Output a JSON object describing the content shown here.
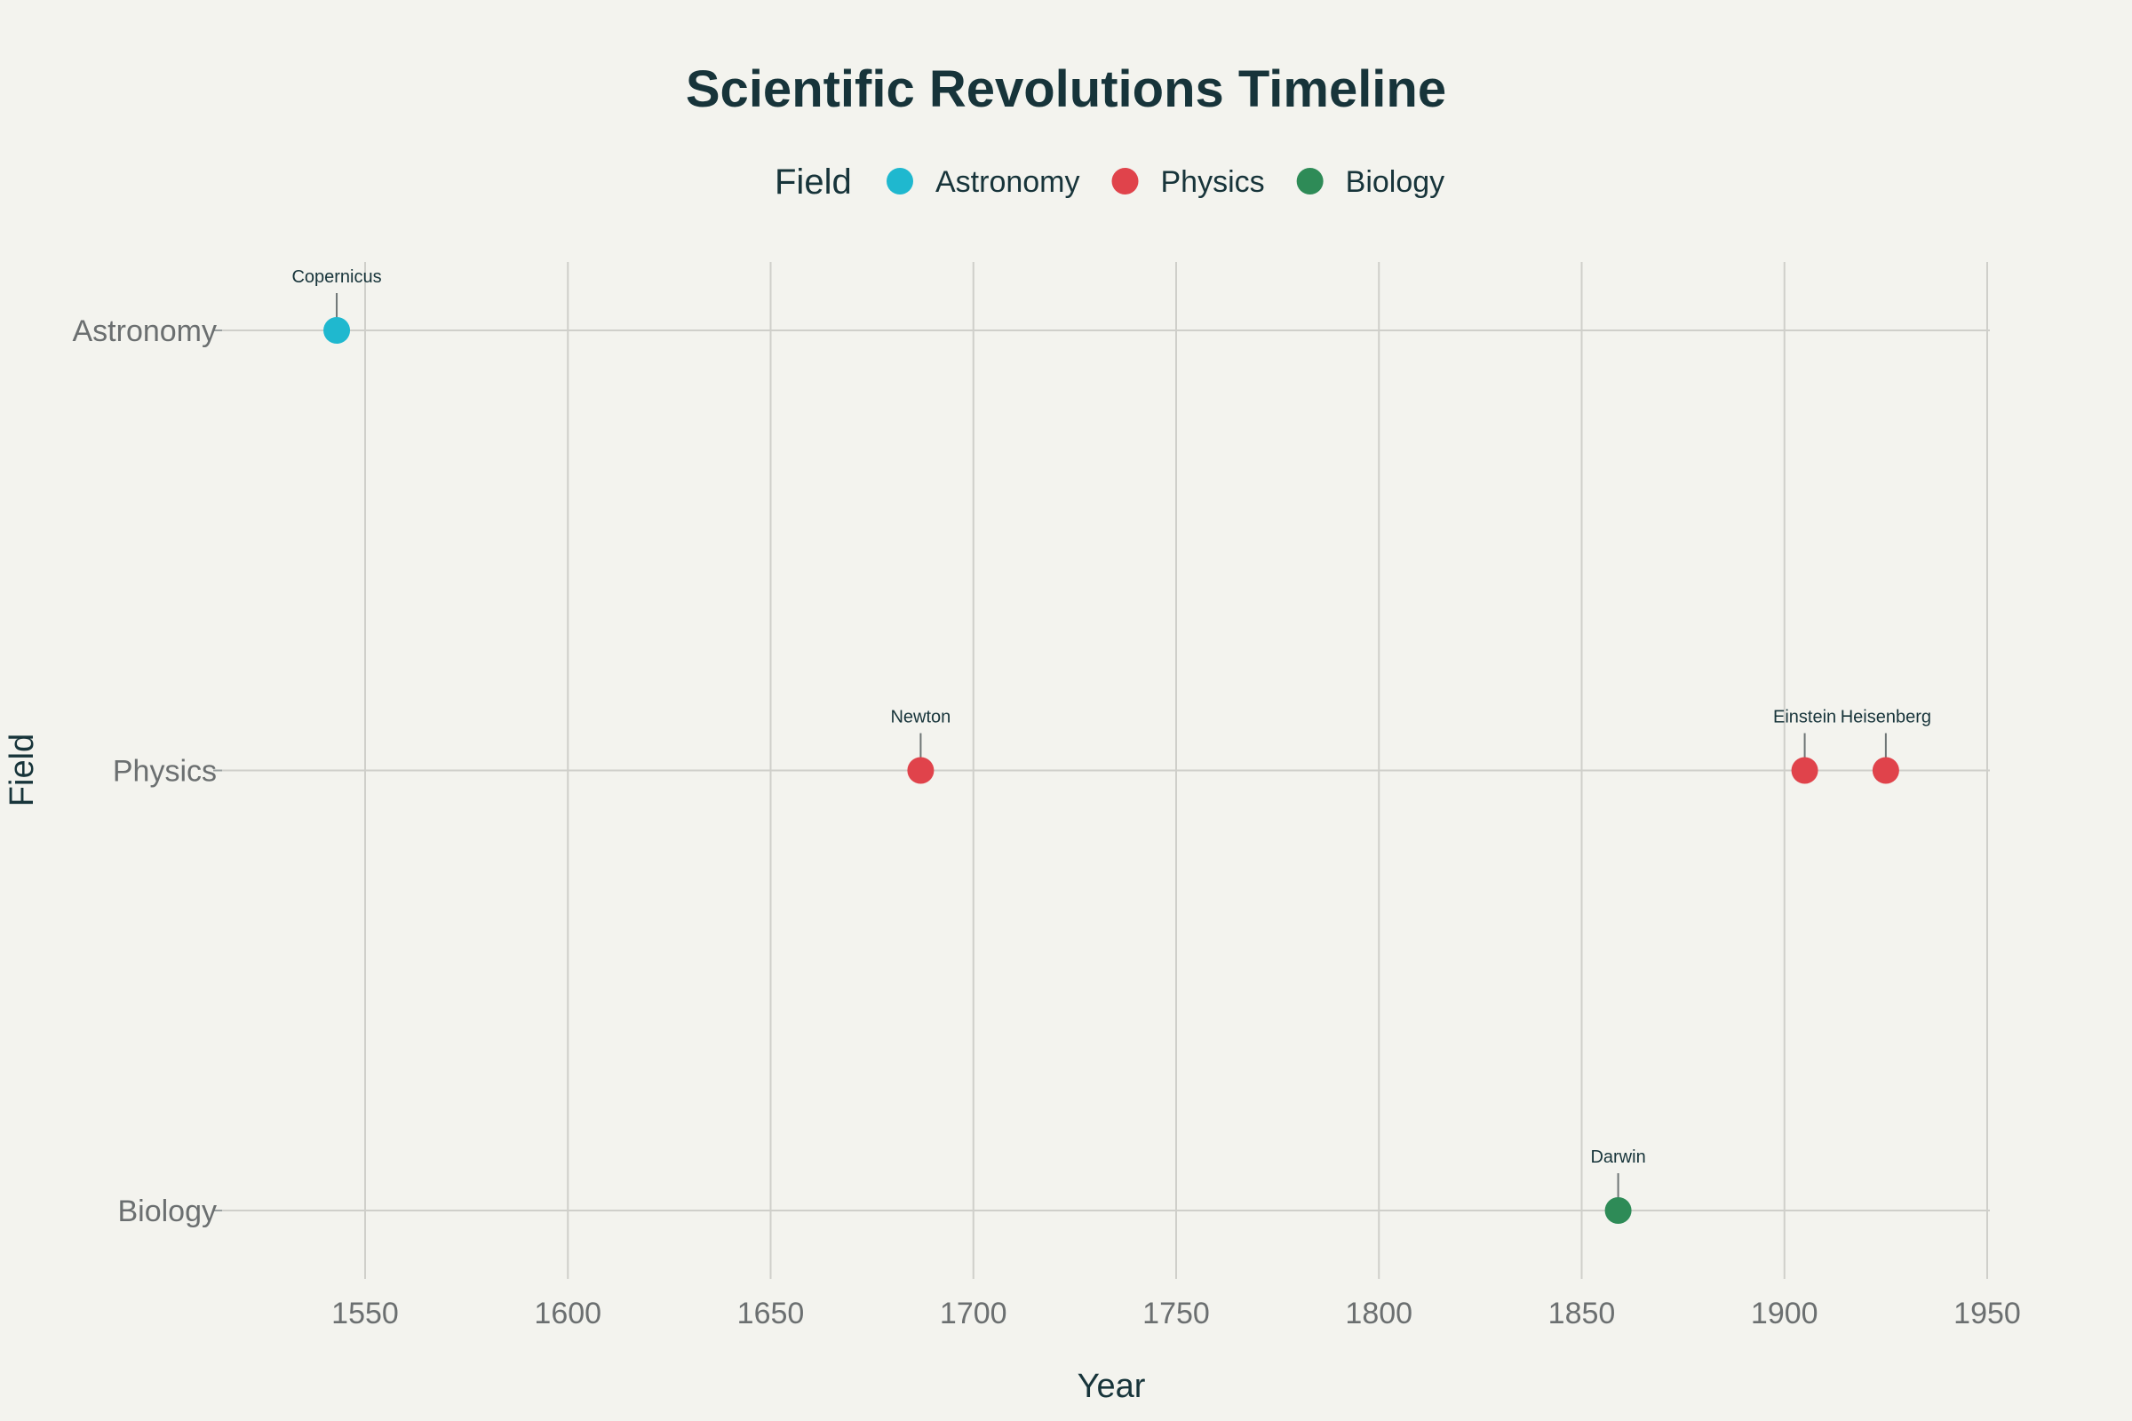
{
  "chart_data": {
    "type": "scatter",
    "title": "Scientific Revolutions Timeline",
    "xlabel": "Year",
    "ylabel": "Field",
    "xlim": [
      1515,
      1955
    ],
    "xticks": [
      1550,
      1600,
      1650,
      1700,
      1750,
      1800,
      1850,
      1900,
      1950
    ],
    "categories": [
      "Astronomy",
      "Physics",
      "Biology"
    ],
    "legend": {
      "title": "Field",
      "placement": "top-center",
      "entries": [
        "Astronomy",
        "Physics",
        "Biology"
      ]
    },
    "grid": true,
    "series": [
      {
        "name": "Astronomy",
        "color": "#1fb8cf",
        "points": [
          {
            "x": 1543,
            "y": "Astronomy",
            "label": "Copernicus"
          }
        ]
      },
      {
        "name": "Physics",
        "color": "#e0434b",
        "points": [
          {
            "x": 1687,
            "y": "Physics",
            "label": "Newton"
          },
          {
            "x": 1905,
            "y": "Physics",
            "label": "Einstein"
          },
          {
            "x": 1925,
            "y": "Physics",
            "label": "Heisenberg"
          }
        ]
      },
      {
        "name": "Biology",
        "color": "#2e8b57",
        "points": [
          {
            "x": 1859,
            "y": "Biology",
            "label": "Darwin"
          }
        ]
      }
    ]
  }
}
